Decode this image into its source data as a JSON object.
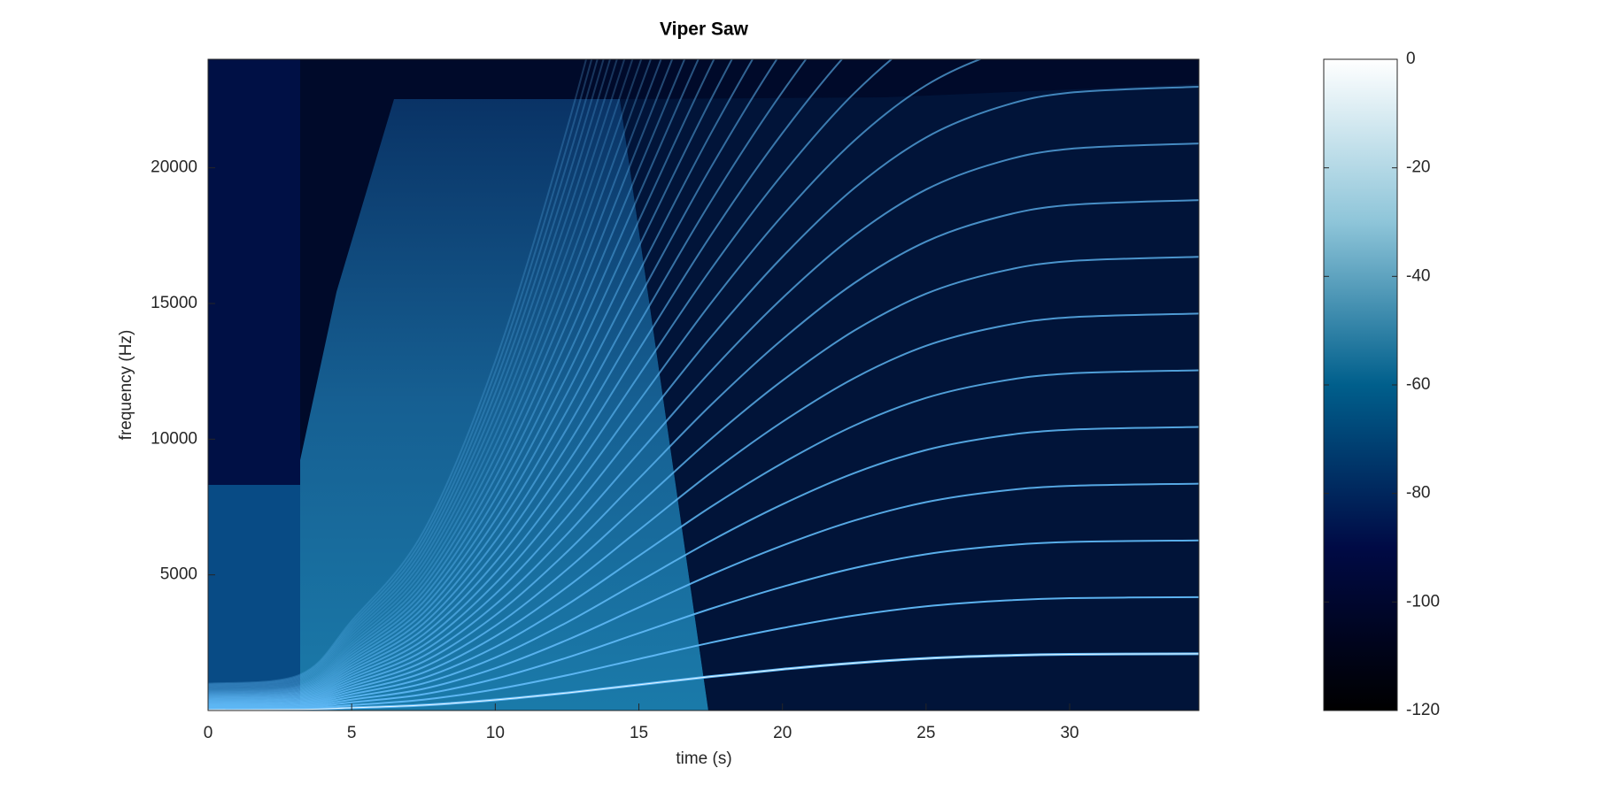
{
  "chart_data": {
    "type": "spectrogram",
    "title": "Viper Saw",
    "x_label": "time (s)",
    "y_label": "frequency (Hz)",
    "series": [
      {
        "name": "fundamental",
        "color": "#5fb8f5",
        "x": [
          0,
          3.2,
          5,
          7.5,
          10,
          12.5,
          15,
          17.5,
          20,
          22.5,
          25,
          27.5,
          30,
          34.5
        ],
        "values": [
          30,
          40,
          100,
          200,
          390,
          650,
          950,
          1250,
          1520,
          1750,
          1920,
          2020,
          2070,
          2090
        ]
      }
    ],
    "xlim": [
      0,
      34.5
    ],
    "xticks": [
      0,
      5,
      10,
      15,
      20,
      25,
      30
    ],
    "ylim": [
      0,
      24000
    ],
    "yticks": [
      5000,
      10000,
      15000,
      20000
    ],
    "clim": [
      -120,
      0
    ],
    "cticks": [
      0,
      -20,
      -40,
      -60,
      -80,
      -100,
      -120
    ],
    "colormap": [
      "#000000",
      "#000a45",
      "#005f8c",
      "#8ec5d9",
      "#ffffff"
    ]
  }
}
